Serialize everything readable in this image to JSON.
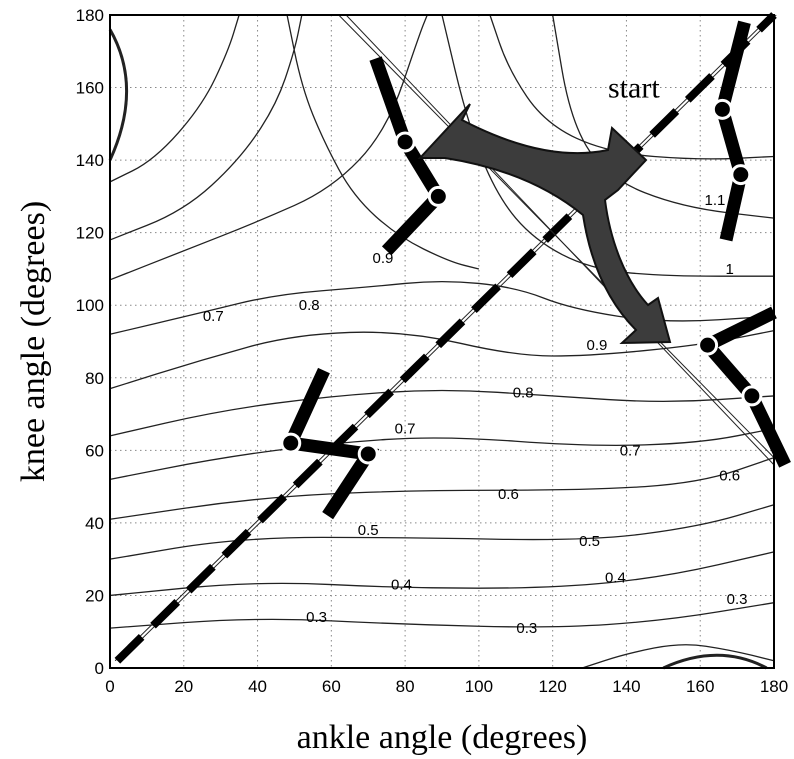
{
  "chart_data": {
    "type": "contour",
    "xlabel": "ankle angle (degrees)",
    "ylabel": "knee angle (degrees)",
    "xlim": [
      0,
      180
    ],
    "ylim": [
      0,
      180
    ],
    "xticks": [
      0,
      20,
      40,
      60,
      80,
      100,
      120,
      140,
      160,
      180
    ],
    "yticks": [
      0,
      20,
      40,
      60,
      80,
      100,
      120,
      140,
      160,
      180
    ],
    "grid": true,
    "contour_levels": [
      0.3,
      0.4,
      0.5,
      0.6,
      0.7,
      0.8,
      0.9,
      1,
      1.1
    ],
    "contour_labels": [
      {
        "text": "0.3",
        "x": 56,
        "y": 14
      },
      {
        "text": "0.3",
        "x": 113,
        "y": 11
      },
      {
        "text": "0.3",
        "x": 170,
        "y": 19
      },
      {
        "text": "0.4",
        "x": 79,
        "y": 23
      },
      {
        "text": "0.4",
        "x": 137,
        "y": 25
      },
      {
        "text": "0.5",
        "x": 70,
        "y": 38
      },
      {
        "text": "0.5",
        "x": 130,
        "y": 35
      },
      {
        "text": "0.6",
        "x": 108,
        "y": 48
      },
      {
        "text": "0.6",
        "x": 168,
        "y": 53
      },
      {
        "text": "0.7",
        "x": 80,
        "y": 66
      },
      {
        "text": "0.7",
        "x": 141,
        "y": 60
      },
      {
        "text": "0.7",
        "x": 28,
        "y": 97
      },
      {
        "text": "0.8",
        "x": 112,
        "y": 76
      },
      {
        "text": "0.8",
        "x": 54,
        "y": 100
      },
      {
        "text": "0.9",
        "x": 132,
        "y": 89
      },
      {
        "text": "0.9",
        "x": 74,
        "y": 113
      },
      {
        "text": "1",
        "x": 168,
        "y": 110
      },
      {
        "text": "1.1",
        "x": 164,
        "y": 129
      }
    ],
    "annotations": [
      {
        "text": "start",
        "x": 135,
        "y": 160
      }
    ],
    "diagonal_path": [
      [
        2,
        2
      ],
      [
        180,
        180
      ]
    ],
    "leg_configurations": [
      {
        "hip": [
          172,
          178
        ],
        "knee": [
          166,
          154
        ],
        "ankle": [
          171,
          136
        ],
        "toe": [
          167,
          118
        ]
      },
      {
        "hip": [
          72,
          168
        ],
        "knee": [
          80,
          145
        ],
        "ankle": [
          89,
          130
        ],
        "toe": [
          75,
          115
        ]
      },
      {
        "hip": [
          180,
          98
        ],
        "knee": [
          162,
          89
        ],
        "ankle": [
          174,
          75
        ],
        "toe": [
          183,
          56
        ]
      },
      {
        "hip": [
          58,
          82
        ],
        "knee": [
          49,
          62
        ],
        "ankle": [
          70,
          59
        ],
        "toe": [
          59,
          42
        ]
      }
    ]
  }
}
